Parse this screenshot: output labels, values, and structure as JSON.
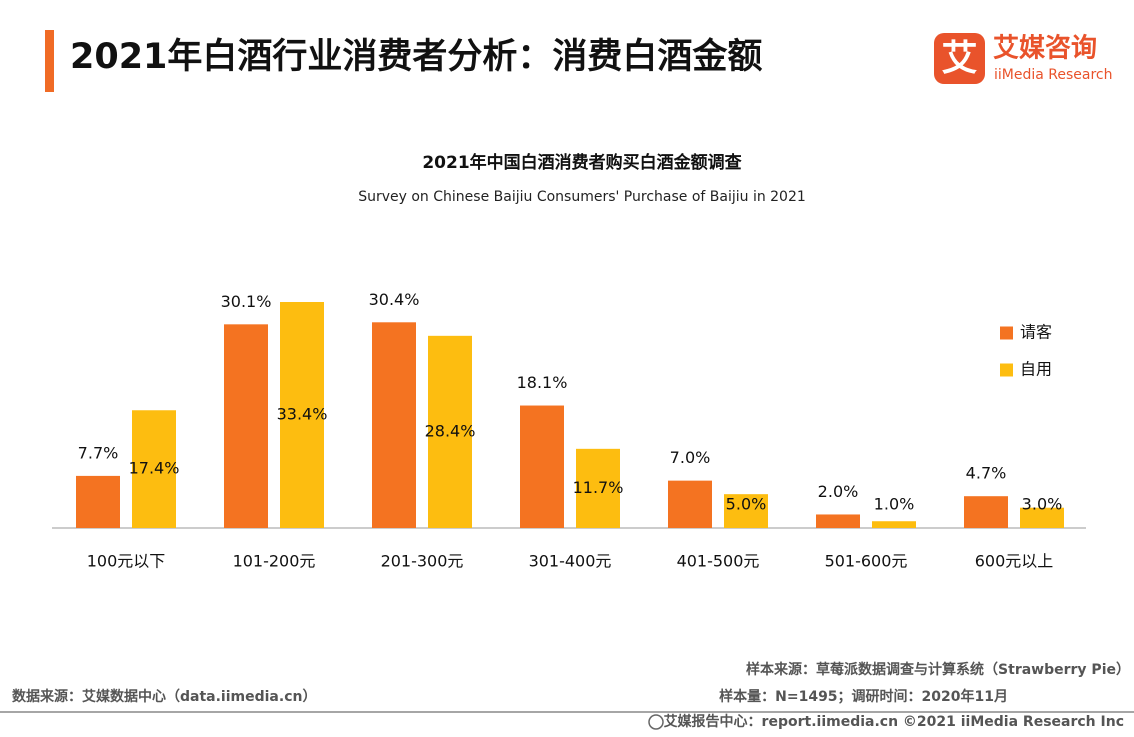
{
  "header": {
    "title": "2021年白酒行业消费者分析：消费白酒金额",
    "logo_mark": "艾",
    "logo_name": "艾媒咨询",
    "logo_english": "iiMedia Research"
  },
  "chart_data": {
    "type": "bar",
    "title": "2021年中国白酒消费者购买白酒金额调查",
    "subtitle": "Survey on Chinese Baijiu Consumers' Purchase of Baijiu in 2021",
    "categories": [
      "100元以下",
      "101-200元",
      "201-300元",
      "301-400元",
      "401-500元",
      "501-600元",
      "600元以上"
    ],
    "series": [
      {
        "name": "请客",
        "color": "#f47321",
        "values": [
          7.7,
          30.1,
          30.4,
          18.1,
          7.0,
          2.0,
          4.7
        ],
        "value_labels": [
          "7.7%",
          "30.1%",
          "30.4%",
          "18.1%",
          "7.0%",
          "2.0%",
          "4.7%"
        ]
      },
      {
        "name": "自用",
        "color": "#fdbd10",
        "values": [
          17.4,
          33.4,
          28.4,
          11.7,
          5.0,
          1.0,
          3.0
        ],
        "value_labels": [
          "17.4%",
          "33.4%",
          "28.4%",
          "11.7%",
          "5.0%",
          "1.0%",
          "3.0%"
        ]
      }
    ],
    "legend": "right"
  },
  "footer": {
    "sample_source": "样本来源：草莓派数据调查与计算系统（Strawberry Pie）",
    "sample_size": "样本量：N=1495；调研时间：2020年11月",
    "data_source": "数据来源：艾媒数据中心（data.iimedia.cn）",
    "report_center": "艾媒报告中心：report.iimedia.cn  ©2021  iiMedia Research  Inc"
  }
}
